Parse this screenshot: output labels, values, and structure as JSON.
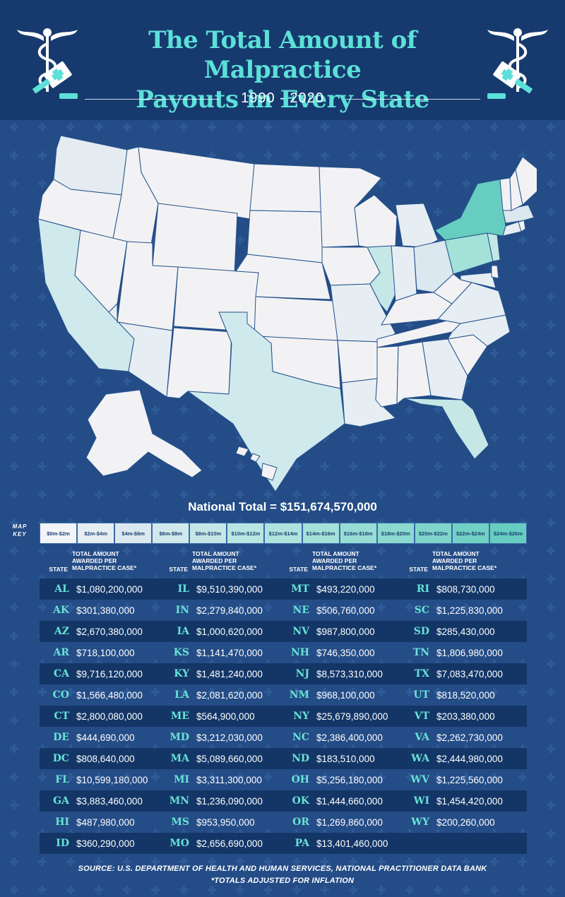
{
  "header": {
    "title_line1": "The Total Amount of Malpractice",
    "title_line2": "Payouts in Every State",
    "years": "1990 - 2020"
  },
  "icons": {
    "left": "caduceus-gavel-icon",
    "right": "caduceus-gavel-icon"
  },
  "colors": {
    "header_bg": "#163a6e",
    "page_bg": "#244c86",
    "accent": "#5ce0d8",
    "state_base": "#f2f2f4",
    "state_stroke": "#24528c"
  },
  "national_total": "National Total = $151,674,570,000",
  "map_key": {
    "label_line1": "MAP",
    "label_line2": "KEY",
    "bins": [
      {
        "label": "$0m-$2m",
        "color": "#f3f4f7"
      },
      {
        "label": "$2m-$4m",
        "color": "#e6eef3"
      },
      {
        "label": "$4m-$6m",
        "color": "#dbe8ef"
      },
      {
        "label": "$6m-$8m",
        "color": "#d0e9ec"
      },
      {
        "label": "$8m-$10m",
        "color": "#c5e8e7"
      },
      {
        "label": "$10m-$12m",
        "color": "#bae6e2"
      },
      {
        "label": "$12m-$14m",
        "color": "#afe4de"
      },
      {
        "label": "$14m-$16m",
        "color": "#a3e1d9"
      },
      {
        "label": "$16m-$18m",
        "color": "#97ddd4"
      },
      {
        "label": "$18m-$20m",
        "color": "#8bd9cf"
      },
      {
        "label": "$20m-$22m",
        "color": "#7fd5ca"
      },
      {
        "label": "$22m-$24m",
        "color": "#72d1c5"
      },
      {
        "label": "$24m-$26m",
        "color": "#66cdc0"
      }
    ]
  },
  "table_headers": {
    "state": "STATE",
    "amount_l1": "TOTAL AMOUNT",
    "amount_l2": "AWARDED PER",
    "amount_l3": "MALPRACTICE CASE*"
  },
  "columns": [
    [
      {
        "abbr": "AL",
        "value": "$1,080,200,000"
      },
      {
        "abbr": "AK",
        "value": "$301,380,000"
      },
      {
        "abbr": "AZ",
        "value": "$2,670,380,000"
      },
      {
        "abbr": "AR",
        "value": "$718,100,000"
      },
      {
        "abbr": "CA",
        "value": "$9,716,120,000"
      },
      {
        "abbr": "CO",
        "value": "$1,566,480,000"
      },
      {
        "abbr": "CT",
        "value": "$2,800,080,000"
      },
      {
        "abbr": "DE",
        "value": "$444,690,000"
      },
      {
        "abbr": "DC",
        "value": "$808,640,000"
      },
      {
        "abbr": "FL",
        "value": "$10,599,180,000"
      },
      {
        "abbr": "GA",
        "value": "$3,883,460,000"
      },
      {
        "abbr": "HI",
        "value": "$487,980,000"
      },
      {
        "abbr": "ID",
        "value": "$360,290,000"
      }
    ],
    [
      {
        "abbr": "IL",
        "value": "$9,510,390,000"
      },
      {
        "abbr": "IN",
        "value": "$2,279,840,000"
      },
      {
        "abbr": "IA",
        "value": "$1,000,620,000"
      },
      {
        "abbr": "KS",
        "value": "$1,141,470,000"
      },
      {
        "abbr": "KY",
        "value": "$1,481,240,000"
      },
      {
        "abbr": "LA",
        "value": "$2,081,620,000"
      },
      {
        "abbr": "ME",
        "value": "$564,900,000"
      },
      {
        "abbr": "MD",
        "value": "$3,212,030,000"
      },
      {
        "abbr": "MA",
        "value": "$5,089,660,000"
      },
      {
        "abbr": "MI",
        "value": "$3,311,300,000"
      },
      {
        "abbr": "MN",
        "value": "$1,236,090,000"
      },
      {
        "abbr": "MS",
        "value": "$953,950,000"
      },
      {
        "abbr": "MO",
        "value": "$2,656,690,000"
      }
    ],
    [
      {
        "abbr": "MT",
        "value": "$493,220,000"
      },
      {
        "abbr": "NE",
        "value": "$506,760,000"
      },
      {
        "abbr": "NV",
        "value": "$987,800,000"
      },
      {
        "abbr": "NH",
        "value": "$746,350,000"
      },
      {
        "abbr": "NJ",
        "value": "$8,573,310,000"
      },
      {
        "abbr": "NM",
        "value": "$968,100,000"
      },
      {
        "abbr": "NY",
        "value": "$25,679,890,000"
      },
      {
        "abbr": "NC",
        "value": "$2,386,400,000"
      },
      {
        "abbr": "ND",
        "value": "$183,510,000"
      },
      {
        "abbr": "OH",
        "value": "$5,256,180,000"
      },
      {
        "abbr": "OK",
        "value": "$1,444,660,000"
      },
      {
        "abbr": "OR",
        "value": "$1,269,860,000"
      },
      {
        "abbr": "PA",
        "value": "$13,401,460,000"
      }
    ],
    [
      {
        "abbr": "RI",
        "value": "$808,730,000"
      },
      {
        "abbr": "SC",
        "value": "$1,225,830,000"
      },
      {
        "abbr": "SD",
        "value": "$285,430,000"
      },
      {
        "abbr": "TN",
        "value": "$1,806,980,000"
      },
      {
        "abbr": "TX",
        "value": "$7,083,470,000"
      },
      {
        "abbr": "UT",
        "value": "$818,520,000"
      },
      {
        "abbr": "VT",
        "value": "$203,380,000"
      },
      {
        "abbr": "VA",
        "value": "$2,262,730,000"
      },
      {
        "abbr": "WA",
        "value": "$2,444,980,000"
      },
      {
        "abbr": "WV",
        "value": "$1,225,560,000"
      },
      {
        "abbr": "WI",
        "value": "$1,454,420,000"
      },
      {
        "abbr": "WY",
        "value": "$200,260,000"
      }
    ]
  ],
  "source_line1": "SOURCE:  U.S. DEPARTMENT OF HEALTH AND HUMAN SERVICES, NATIONAL PRACTITIONER DATA BANK",
  "source_line2": "*TOTALS ADJUSTED FOR INFLATION"
}
